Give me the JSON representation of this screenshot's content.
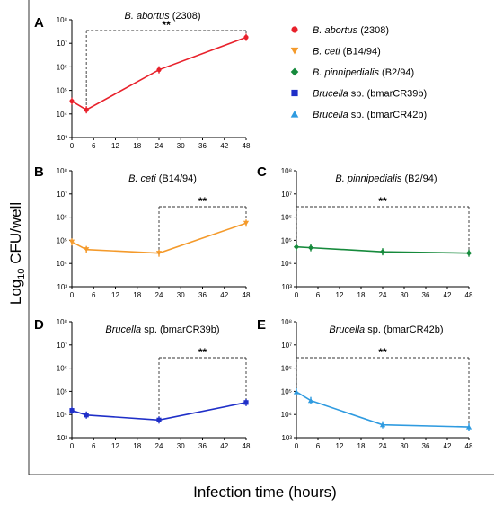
{
  "figure": {
    "ylabel_prefix": "Log",
    "ylabel_sub": "10",
    "ylabel_suffix": " CFU/well",
    "xlabel": "Infection time (hours)"
  },
  "legend": [
    {
      "italic": "B. abortus",
      "plain": " (2308)",
      "color": "#e8212b",
      "marker": "circle"
    },
    {
      "italic": "B. ceti",
      "plain": " (B14/94)",
      "color": "#f49a2b",
      "marker": "triangle-down"
    },
    {
      "italic": "B. pinnipedialis",
      "plain": " (B2/94)",
      "color": "#168a3c",
      "marker": "diamond"
    },
    {
      "italic": "Brucella",
      "plain": " sp. (bmarCR39b)",
      "color": "#1f2fc8",
      "marker": "square"
    },
    {
      "italic": "Brucella",
      "plain": " sp. (bmarCR42b)",
      "color": "#2f9be0",
      "marker": "triangle-up"
    }
  ],
  "chart_data": [
    {
      "type": "line",
      "panel": "A",
      "title_italic": "B. abortus",
      "title_plain": " (2308)",
      "x_ticks": [
        0,
        6,
        12,
        18,
        24,
        30,
        36,
        42,
        48
      ],
      "y_ticks": [
        "10³",
        "10⁴",
        "10⁵",
        "10⁶",
        "10⁷",
        "10⁸"
      ],
      "ylim_log10": [
        3,
        8
      ],
      "xlim": [
        0,
        48
      ],
      "series": [
        {
          "color": "#e8212b",
          "marker": "circle",
          "x": [
            0,
            4,
            24,
            48
          ],
          "y": [
            35000,
            15000,
            750000,
            18000000
          ]
        }
      ],
      "significance": {
        "label": "**",
        "x_from": 4,
        "x_to": 48
      }
    },
    {
      "type": "line",
      "panel": "B",
      "title_italic": "B. ceti",
      "title_plain": " (B14/94)",
      "x_ticks": [
        0,
        6,
        12,
        18,
        24,
        30,
        36,
        42,
        48
      ],
      "y_ticks": [
        "10³",
        "10⁴",
        "10⁵",
        "10⁶",
        "10⁷",
        "10⁸"
      ],
      "ylim_log10": [
        3,
        8
      ],
      "xlim": [
        0,
        48
      ],
      "series": [
        {
          "color": "#f49a2b",
          "marker": "triangle-down",
          "x": [
            0,
            4,
            24,
            48
          ],
          "y": [
            85000,
            40000,
            28000,
            550000
          ]
        }
      ],
      "significance": {
        "label": "**",
        "x_from": 24,
        "x_to": 48
      }
    },
    {
      "type": "line",
      "panel": "C",
      "title_italic": "B. pinnipedialis",
      "title_plain": " (B2/94)",
      "x_ticks": [
        0,
        6,
        12,
        18,
        24,
        30,
        36,
        42,
        48
      ],
      "y_ticks": [
        "10³",
        "10⁴",
        "10⁵",
        "10⁶",
        "10⁷",
        "10⁸"
      ],
      "ylim_log10": [
        3,
        8
      ],
      "xlim": [
        0,
        48
      ],
      "series": [
        {
          "color": "#168a3c",
          "marker": "diamond",
          "x": [
            0,
            4,
            24,
            48
          ],
          "y": [
            52000,
            48000,
            32000,
            28000
          ]
        }
      ],
      "significance": {
        "label": "**",
        "x_from": 0,
        "x_to": 48
      }
    },
    {
      "type": "line",
      "panel": "D",
      "title_italic": "Brucella",
      "title_plain": " sp. (bmarCR39b)",
      "x_ticks": [
        0,
        6,
        12,
        18,
        24,
        30,
        36,
        42,
        48
      ],
      "y_ticks": [
        "10³",
        "10⁴",
        "10⁵",
        "10⁶",
        "10⁷",
        "10⁸"
      ],
      "ylim_log10": [
        3,
        8
      ],
      "xlim": [
        0,
        48
      ],
      "series": [
        {
          "color": "#1f2fc8",
          "marker": "square",
          "x": [
            0,
            4,
            24,
            48
          ],
          "y": [
            15000,
            9500,
            5800,
            33000
          ]
        }
      ],
      "significance": {
        "label": "**",
        "x_from": 24,
        "x_to": 48
      }
    },
    {
      "type": "line",
      "panel": "E",
      "title_italic": "Brucella",
      "title_plain": " sp. (bmarCR42b)",
      "x_ticks": [
        0,
        6,
        12,
        18,
        24,
        30,
        36,
        42,
        48
      ],
      "y_ticks": [
        "10³",
        "10⁴",
        "10⁵",
        "10⁶",
        "10⁷",
        "10⁸"
      ],
      "ylim_log10": [
        3,
        8
      ],
      "xlim": [
        0,
        48
      ],
      "series": [
        {
          "color": "#2f9be0",
          "marker": "triangle-up",
          "x": [
            0,
            4,
            24,
            48
          ],
          "y": [
            95000,
            40000,
            3600,
            2900
          ]
        }
      ],
      "significance": {
        "label": "**",
        "x_from": 0,
        "x_to": 48
      }
    }
  ]
}
